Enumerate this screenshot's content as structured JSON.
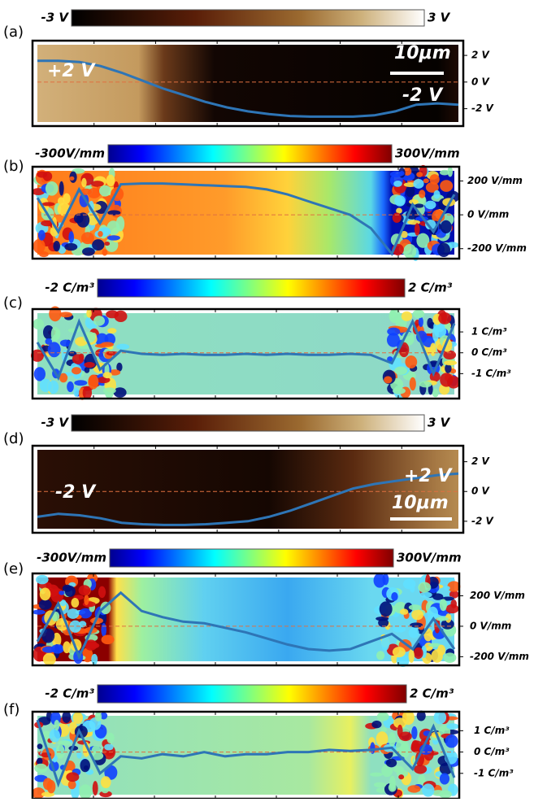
{
  "chart_data": [
    {
      "type": "line",
      "label": "(a)",
      "colorbar": {
        "min_label": "-3 V",
        "max_label": "3 V",
        "colormap": "copper"
      },
      "ylim": [
        -3,
        2.8
      ],
      "yticks": [
        {
          "value": 2,
          "label": "2 V"
        },
        {
          "value": 0,
          "label": "0 V"
        },
        {
          "value": -2,
          "label": "-2 V"
        }
      ],
      "annotations": [
        "+2 V",
        "-2 V",
        "10μm"
      ],
      "color": "#2e75b6",
      "values": [
        1.6,
        1.6,
        1.5,
        1.2,
        0.7,
        0.1,
        -0.5,
        -1.0,
        -1.5,
        -1.9,
        -2.2,
        -2.4,
        -2.55,
        -2.6,
        -2.6,
        -2.6,
        -2.5,
        -2.2,
        -1.7,
        -1.6,
        -1.7
      ]
    },
    {
      "type": "line",
      "label": "(b)",
      "colorbar": {
        "min_label": "-300V/mm",
        "max_label": "300V/mm",
        "colormap": "jet"
      },
      "ylim": [
        -235,
        260
      ],
      "yticks": [
        {
          "value": 200,
          "label": "200 V/mm"
        },
        {
          "value": 0,
          "label": "0 V/mm"
        },
        {
          "value": -200,
          "label": "-200 V/mm"
        }
      ],
      "annotations": [],
      "color": "#2e75b6",
      "values": [
        100,
        -100,
        150,
        -50,
        180,
        185,
        185,
        180,
        175,
        170,
        165,
        150,
        120,
        80,
        40,
        0,
        -80,
        -230,
        60,
        -100,
        120
      ]
    },
    {
      "type": "line",
      "label": "(c)",
      "colorbar": {
        "min_label": "-2 C/m³",
        "max_label": "2 C/m³",
        "colormap": "jet"
      },
      "ylim": [
        -2,
        1.9
      ],
      "yticks": [
        {
          "value": 1,
          "label": "1 C/m³"
        },
        {
          "value": 0,
          "label": "0 C/m³"
        },
        {
          "value": -1,
          "label": "-1 C/m³"
        }
      ],
      "annotations": [],
      "color": "#2e75b6",
      "values": [
        0.5,
        -1.2,
        1.5,
        -0.8,
        0.1,
        -0.05,
        -0.1,
        -0.05,
        -0.1,
        -0.1,
        -0.05,
        -0.1,
        -0.05,
        -0.1,
        -0.1,
        -0.05,
        -0.1,
        -0.5,
        1.5,
        -1.0,
        1.4
      ]
    },
    {
      "type": "line",
      "label": "(d)",
      "colorbar": {
        "min_label": "-3 V",
        "max_label": "3 V",
        "colormap": "copper"
      },
      "ylim": [
        -2.5,
        2.8
      ],
      "yticks": [
        {
          "value": 2,
          "label": "2 V"
        },
        {
          "value": 0,
          "label": "0 V"
        },
        {
          "value": -2,
          "label": "-2 V"
        }
      ],
      "annotations": [
        "-2 V",
        "+2 V",
        "10μm"
      ],
      "color": "#2e75b6",
      "values": [
        -1.7,
        -1.5,
        -1.6,
        -1.8,
        -2.1,
        -2.2,
        -2.25,
        -2.25,
        -2.2,
        -2.1,
        -2.0,
        -1.7,
        -1.3,
        -0.8,
        -0.3,
        0.2,
        0.5,
        0.7,
        0.9,
        1.1,
        1.2
      ]
    },
    {
      "type": "line",
      "label": "(e)",
      "colorbar": {
        "min_label": "-300V/mm",
        "max_label": "300V/mm",
        "colormap": "jet"
      },
      "ylim": [
        -230,
        320
      ],
      "yticks": [
        {
          "value": 200,
          "label": "200 V/mm"
        },
        {
          "value": 0,
          "label": "0 V/mm"
        },
        {
          "value": -200,
          "label": "-200 V/mm"
        }
      ],
      "annotations": [],
      "color": "#2e75b6",
      "values": [
        -100,
        150,
        -200,
        100,
        220,
        100,
        60,
        30,
        20,
        -10,
        -40,
        -80,
        -120,
        -150,
        -160,
        -150,
        -100,
        -50,
        -150,
        50,
        -150
      ]
    },
    {
      "type": "line",
      "label": "(f)",
      "colorbar": {
        "min_label": "-2 C/m³",
        "max_label": "2 C/m³",
        "colormap": "jet"
      },
      "ylim": [
        -2,
        1.7
      ],
      "yticks": [
        {
          "value": 1,
          "label": "1 C/m³"
        },
        {
          "value": 0,
          "label": "0 C/m³"
        },
        {
          "value": -1,
          "label": "-1 C/m³"
        }
      ],
      "annotations": [],
      "color": "#2e75b6",
      "values": [
        1.5,
        -1.5,
        1.0,
        -1.0,
        -0.2,
        -0.3,
        -0.1,
        -0.2,
        0,
        -0.2,
        -0.1,
        -0.1,
        0,
        0,
        0.1,
        0.05,
        0.1,
        0.2,
        -0.8,
        1.2,
        -1.2
      ]
    }
  ]
}
